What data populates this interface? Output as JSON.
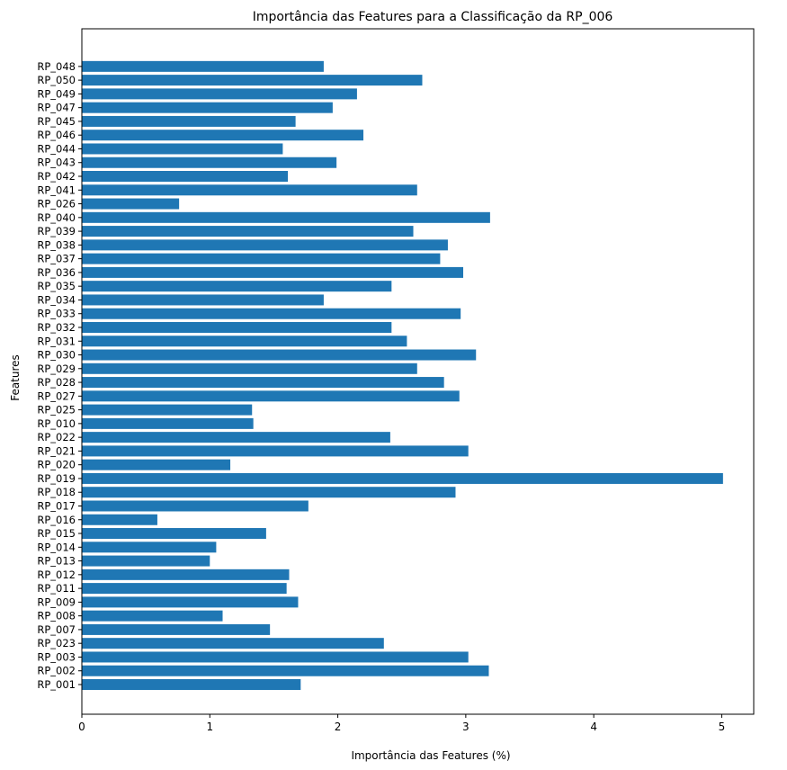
{
  "chart_data": {
    "type": "bar",
    "orientation": "horizontal",
    "title": "Importância das Features para a Classificação da RP_006",
    "xlabel": "Importância das Features (%)",
    "ylabel": "Features",
    "xlim": [
      0,
      5.25
    ],
    "xticks": [
      0,
      1,
      2,
      3,
      4,
      5
    ],
    "grid": false,
    "bar_color": "#1f77b4",
    "categories": [
      "RP_001",
      "RP_002",
      "RP_003",
      "RP_023",
      "RP_007",
      "RP_008",
      "RP_009",
      "RP_011",
      "RP_012",
      "RP_013",
      "RP_014",
      "RP_015",
      "RP_016",
      "RP_017",
      "RP_018",
      "RP_019",
      "RP_020",
      "RP_021",
      "RP_022",
      "RP_010",
      "RP_025",
      "RP_027",
      "RP_028",
      "RP_029",
      "RP_030",
      "RP_031",
      "RP_032",
      "RP_033",
      "RP_034",
      "RP_035",
      "RP_036",
      "RP_037",
      "RP_038",
      "RP_039",
      "RP_040",
      "RP_026",
      "RP_041",
      "RP_042",
      "RP_043",
      "RP_044",
      "RP_046",
      "RP_045",
      "RP_047",
      "RP_049",
      "RP_050",
      "RP_048"
    ],
    "values": [
      1.71,
      3.18,
      3.02,
      2.36,
      1.47,
      1.1,
      1.69,
      1.6,
      1.62,
      1.0,
      1.05,
      1.44,
      0.59,
      1.77,
      2.92,
      5.01,
      1.16,
      3.02,
      2.41,
      1.34,
      1.33,
      2.95,
      2.83,
      2.62,
      3.08,
      2.54,
      2.42,
      2.96,
      1.89,
      2.42,
      2.98,
      2.8,
      2.86,
      2.59,
      3.19,
      0.76,
      2.62,
      1.61,
      1.99,
      1.57,
      2.2,
      1.67,
      1.96,
      2.15,
      2.66,
      1.89
    ]
  }
}
